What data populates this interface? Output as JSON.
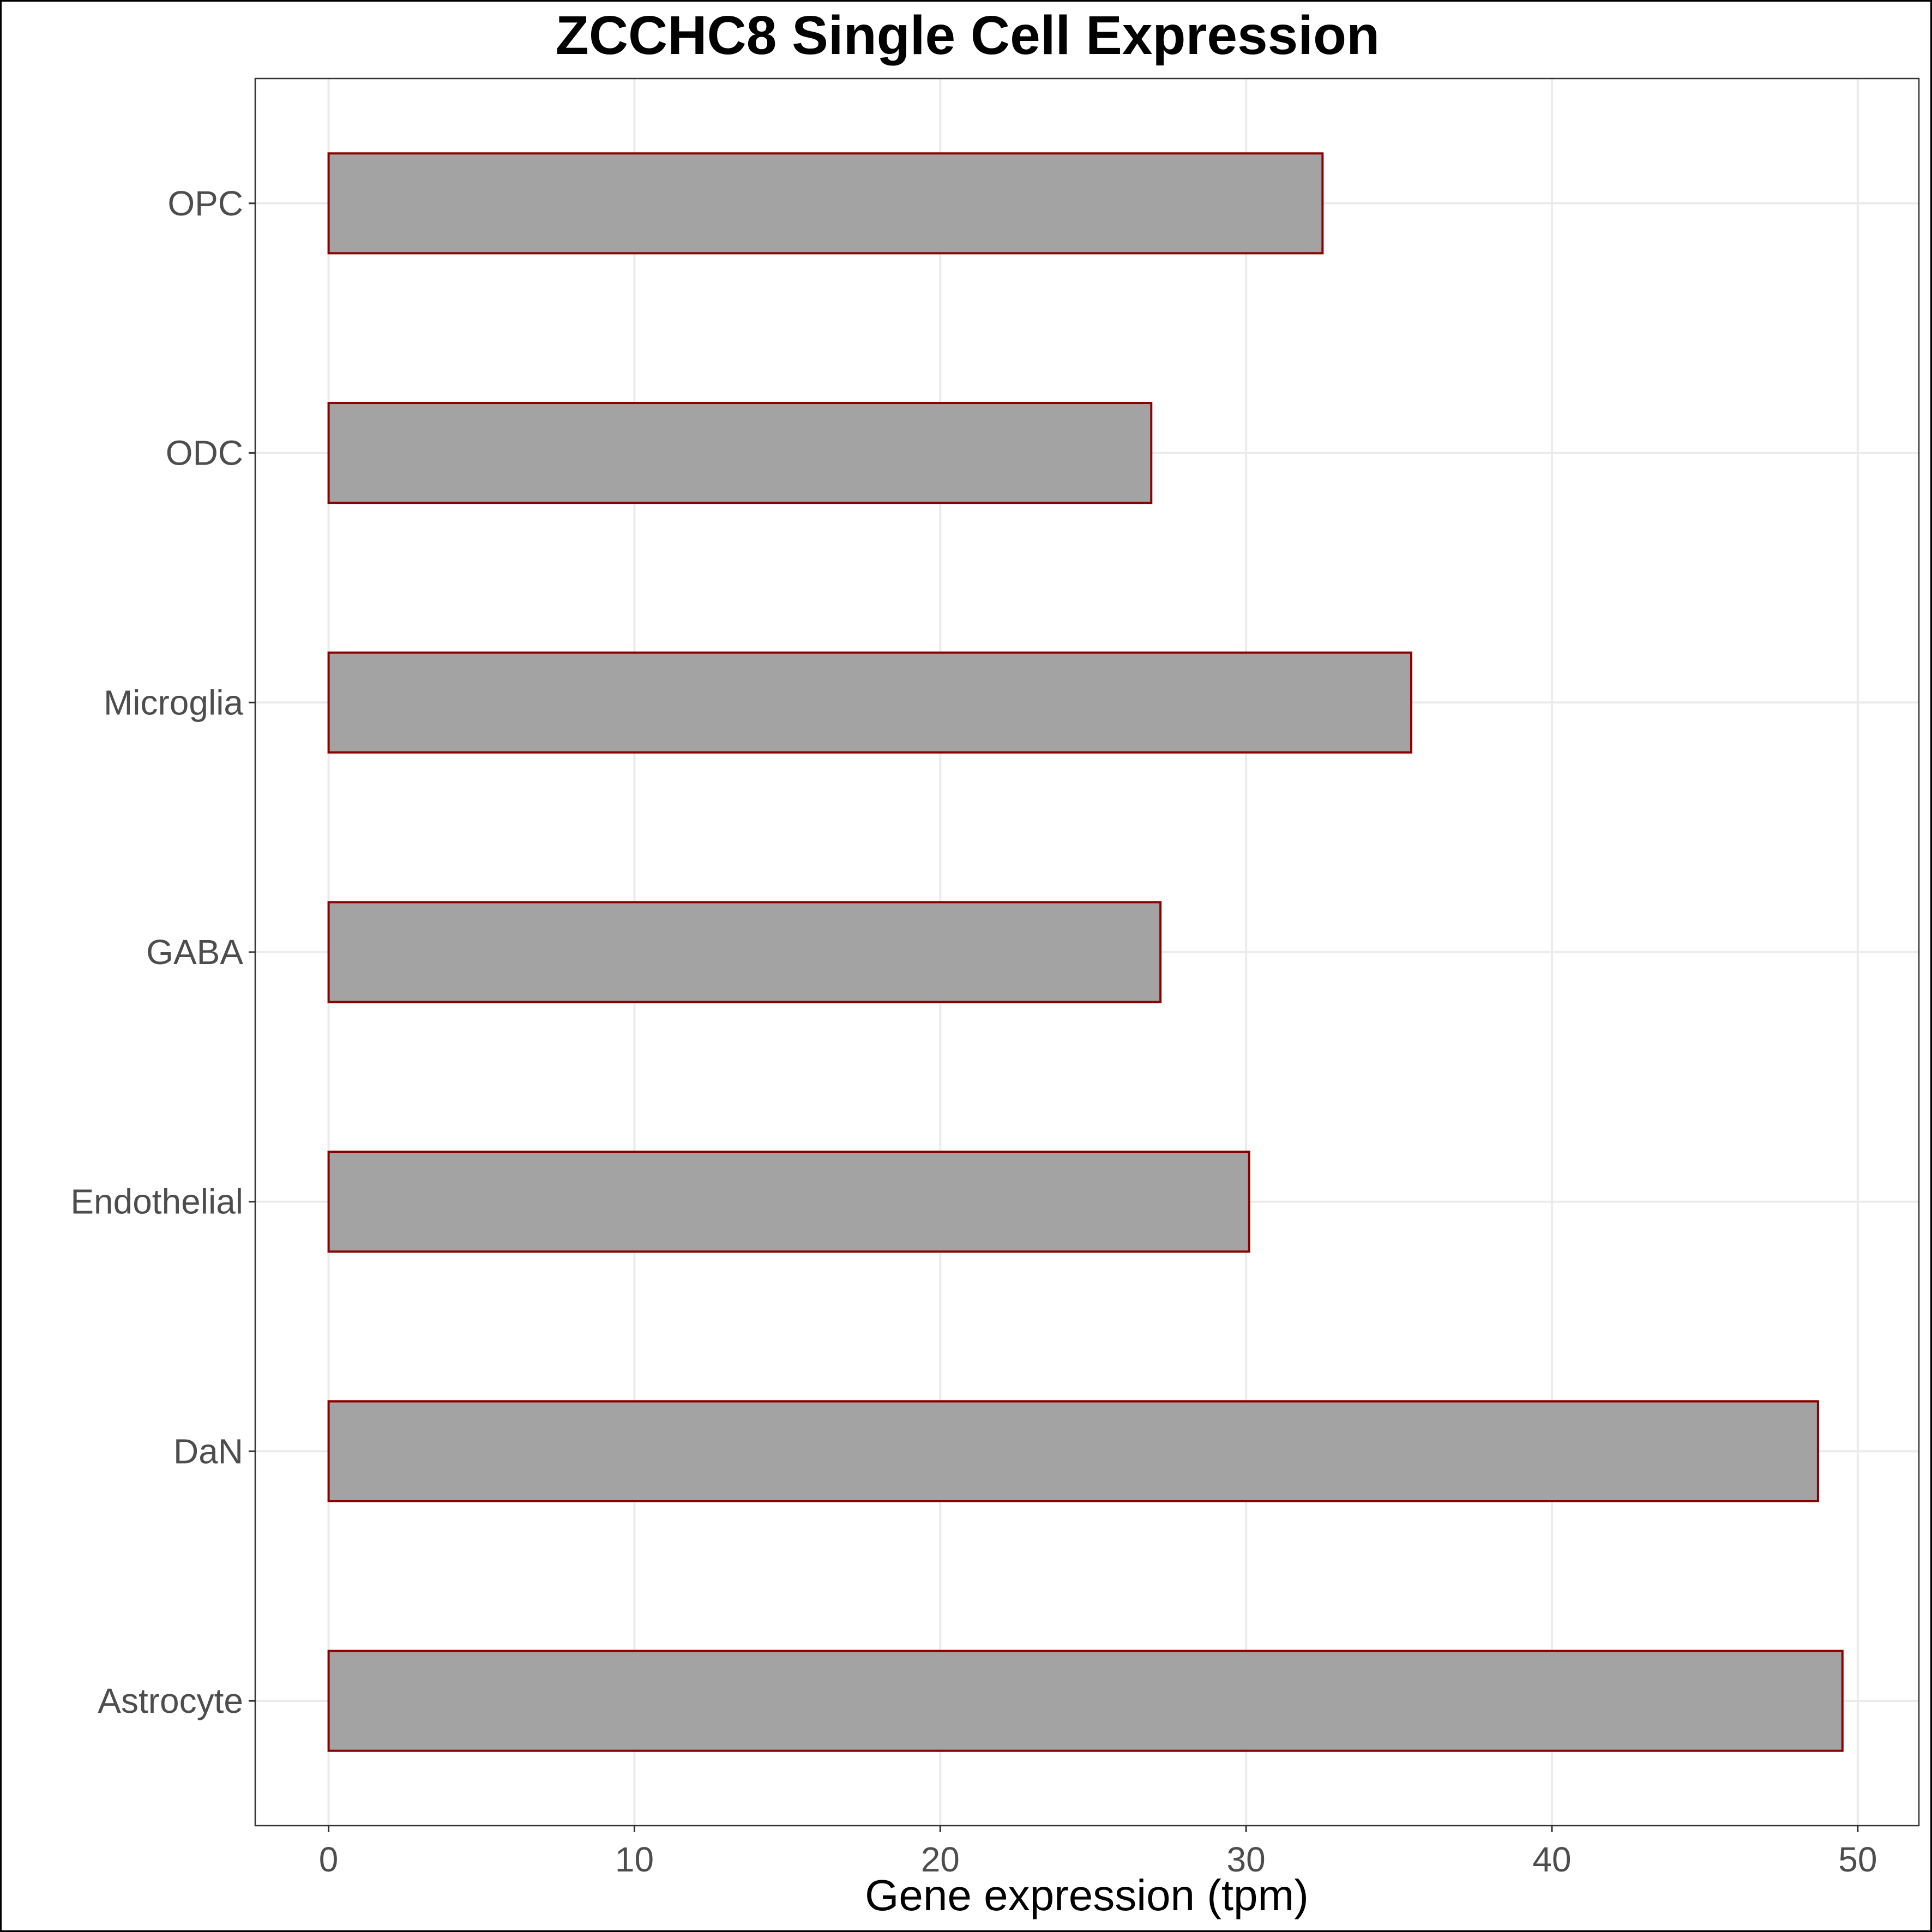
{
  "chart_data": {
    "type": "bar",
    "orientation": "horizontal",
    "title": "ZCCHC8 Single Cell Expression",
    "xlabel": "Gene expression (tpm)",
    "ylabel": "",
    "categories": [
      "Astrocyte",
      "DaN",
      "Endothelial",
      "GABA",
      "Microglia",
      "ODC",
      "OPC"
    ],
    "values": [
      49.5,
      48.7,
      30.1,
      27.2,
      35.4,
      26.9,
      32.5
    ],
    "xlim": [
      -2.4,
      52
    ],
    "xticks": [
      0,
      10,
      20,
      30,
      40,
      50
    ],
    "grid": true,
    "legend": "none",
    "bar_fill_color": "#a3a3a3",
    "bar_edge_color": "#8b0000"
  }
}
